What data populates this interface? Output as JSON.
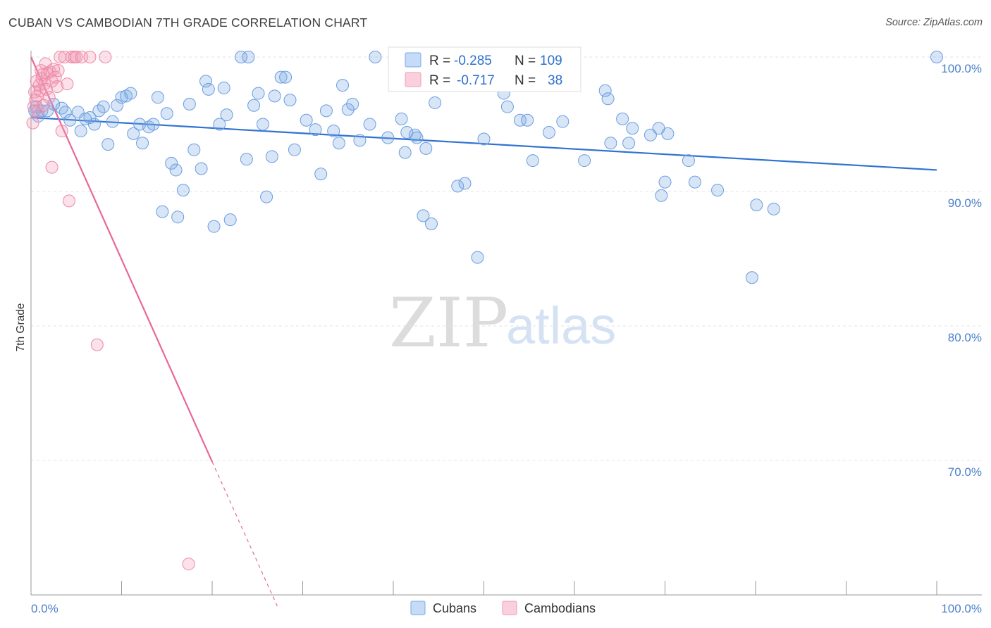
{
  "title": "CUBAN VS CAMBODIAN 7TH GRADE CORRELATION CHART",
  "source": "Source: ZipAtlas.com",
  "watermark": {
    "zip": "ZIP",
    "atlas": "atlas"
  },
  "chart_data": {
    "type": "scatter",
    "title": "CUBAN VS CAMBODIAN 7TH GRADE CORRELATION CHART",
    "xlabel": "",
    "ylabel": "7th Grade",
    "xlim": [
      0,
      105
    ],
    "ylim": [
      60.5,
      101.5
    ],
    "x_tick_labels": [
      {
        "value": 0,
        "label": "0.0%"
      },
      {
        "value": 100,
        "label": "100.0%"
      }
    ],
    "y_tick_labels": [
      {
        "value": 100,
        "label": "100.0%"
      },
      {
        "value": 90,
        "label": "90.0%"
      },
      {
        "value": 80,
        "label": "80.0%"
      },
      {
        "value": 70,
        "label": "70.0%"
      }
    ],
    "x_minor_ticks": [
      0,
      10,
      20,
      30,
      40,
      50,
      60,
      70,
      80,
      90,
      100
    ],
    "grid": true,
    "legend": [
      {
        "name": "Cubans",
        "color": "#7aaae6",
        "r_label": "R =",
        "r": "-0.285",
        "n_label": "N =",
        "n": "109"
      },
      {
        "name": "Cambodians",
        "color": "#f29ab6",
        "r_label": "R =",
        "r": "-0.717",
        "n_label": "N =",
        "n": "38"
      }
    ],
    "series": [
      {
        "name": "Cubans",
        "color": "#7aaae6",
        "stroke": "#6a9ee0",
        "trend": {
          "x0": 0,
          "y0": 95.5,
          "x1": 100,
          "y1": 91.6
        },
        "points": [
          [
            0.4,
            96.0
          ],
          [
            0.8,
            95.6
          ],
          [
            1.2,
            96.0
          ],
          [
            1.8,
            96.0
          ],
          [
            2.5,
            96.5
          ],
          [
            3.4,
            96.2
          ],
          [
            3.8,
            95.9
          ],
          [
            4.3,
            95.3
          ],
          [
            5.2,
            95.9
          ],
          [
            5.5,
            94.5
          ],
          [
            6.0,
            95.4
          ],
          [
            6.5,
            95.5
          ],
          [
            7.0,
            95.0
          ],
          [
            7.5,
            96.0
          ],
          [
            8.0,
            96.3
          ],
          [
            8.5,
            93.5
          ],
          [
            9.0,
            95.2
          ],
          [
            9.5,
            96.4
          ],
          [
            10.0,
            97.0
          ],
          [
            10.5,
            97.1
          ],
          [
            11.0,
            97.3
          ],
          [
            11.3,
            94.3
          ],
          [
            12.0,
            95.0
          ],
          [
            12.3,
            93.6
          ],
          [
            13.0,
            94.8
          ],
          [
            13.5,
            95.0
          ],
          [
            14.0,
            97.0
          ],
          [
            14.5,
            88.5
          ],
          [
            15.0,
            95.8
          ],
          [
            15.5,
            92.1
          ],
          [
            16.0,
            91.6
          ],
          [
            16.2,
            88.1
          ],
          [
            16.8,
            90.1
          ],
          [
            17.5,
            96.5
          ],
          [
            18.0,
            93.1
          ],
          [
            18.8,
            91.7
          ],
          [
            19.3,
            98.2
          ],
          [
            19.6,
            97.6
          ],
          [
            20.2,
            87.4
          ],
          [
            20.8,
            95.0
          ],
          [
            21.3,
            97.7
          ],
          [
            21.6,
            95.7
          ],
          [
            22.0,
            87.9
          ],
          [
            23.2,
            100.0
          ],
          [
            23.8,
            92.4
          ],
          [
            24.0,
            100.0
          ],
          [
            24.6,
            96.4
          ],
          [
            25.1,
            97.3
          ],
          [
            25.6,
            95.0
          ],
          [
            26.0,
            89.6
          ],
          [
            26.6,
            92.6
          ],
          [
            26.9,
            97.1
          ],
          [
            27.6,
            98.5
          ],
          [
            28.1,
            98.5
          ],
          [
            28.6,
            96.8
          ],
          [
            29.1,
            93.1
          ],
          [
            30.4,
            95.3
          ],
          [
            31.4,
            94.6
          ],
          [
            32.0,
            91.3
          ],
          [
            32.6,
            96.0
          ],
          [
            33.4,
            94.5
          ],
          [
            34.0,
            93.6
          ],
          [
            34.4,
            97.9
          ],
          [
            35.0,
            96.1
          ],
          [
            35.5,
            96.5
          ],
          [
            36.3,
            93.8
          ],
          [
            37.4,
            95.0
          ],
          [
            38.0,
            100.0
          ],
          [
            39.4,
            94.0
          ],
          [
            40.9,
            95.4
          ],
          [
            41.3,
            92.9
          ],
          [
            41.5,
            94.4
          ],
          [
            42.4,
            94.2
          ],
          [
            42.6,
            94.0
          ],
          [
            43.3,
            88.2
          ],
          [
            43.6,
            93.2
          ],
          [
            44.2,
            87.6
          ],
          [
            44.6,
            96.6
          ],
          [
            47.1,
            90.4
          ],
          [
            47.9,
            90.6
          ],
          [
            49.3,
            85.1
          ],
          [
            50.0,
            93.9
          ],
          [
            52.2,
            97.3
          ],
          [
            52.6,
            96.3
          ],
          [
            54.0,
            95.3
          ],
          [
            54.8,
            95.3
          ],
          [
            55.4,
            92.3
          ],
          [
            57.2,
            94.4
          ],
          [
            58.7,
            95.2
          ],
          [
            61.1,
            92.3
          ],
          [
            63.4,
            97.5
          ],
          [
            63.7,
            96.9
          ],
          [
            64.0,
            93.6
          ],
          [
            65.3,
            95.4
          ],
          [
            66.0,
            93.6
          ],
          [
            66.4,
            94.7
          ],
          [
            68.4,
            94.2
          ],
          [
            69.3,
            94.7
          ],
          [
            69.6,
            89.7
          ],
          [
            70.0,
            90.7
          ],
          [
            70.3,
            94.3
          ],
          [
            72.6,
            92.3
          ],
          [
            73.3,
            90.7
          ],
          [
            75.8,
            90.1
          ],
          [
            79.6,
            83.6
          ],
          [
            80.1,
            89.0
          ],
          [
            82.0,
            88.7
          ],
          [
            100.0,
            100.0
          ],
          [
            0.6,
            96.3
          ]
        ]
      },
      {
        "name": "Cambodians",
        "color": "#f29ab6",
        "stroke": "#ee88a8",
        "trend": {
          "x0": 0,
          "y0": 100.0,
          "x1": 20,
          "y1": 69.9
        },
        "trend_dashed": {
          "x0": 20,
          "y0": 69.9,
          "x1": 27.3,
          "y1": 59.0
        },
        "points": [
          [
            0.2,
            95.1
          ],
          [
            0.3,
            96.3
          ],
          [
            0.4,
            97.4
          ],
          [
            0.5,
            96.8
          ],
          [
            0.6,
            98.2
          ],
          [
            0.7,
            97.1
          ],
          [
            0.8,
            96.0
          ],
          [
            0.9,
            97.9
          ],
          [
            1.0,
            97.5
          ],
          [
            1.1,
            99.0
          ],
          [
            1.2,
            98.4
          ],
          [
            1.3,
            98.7
          ],
          [
            1.5,
            98.0
          ],
          [
            1.6,
            99.5
          ],
          [
            1.7,
            97.6
          ],
          [
            1.8,
            98.8
          ],
          [
            2.0,
            97.0
          ],
          [
            2.1,
            98.9
          ],
          [
            2.3,
            98.2
          ],
          [
            2.5,
            99.1
          ],
          [
            2.7,
            98.5
          ],
          [
            2.9,
            97.8
          ],
          [
            3.0,
            99.0
          ],
          [
            3.2,
            100.0
          ],
          [
            3.4,
            94.5
          ],
          [
            3.7,
            100.0
          ],
          [
            4.0,
            98.0
          ],
          [
            4.2,
            89.3
          ],
          [
            4.5,
            100.0
          ],
          [
            4.8,
            100.0
          ],
          [
            5.0,
            100.0
          ],
          [
            5.6,
            100.0
          ],
          [
            6.5,
            100.0
          ],
          [
            8.2,
            100.0
          ],
          [
            7.3,
            78.6
          ],
          [
            2.3,
            91.8
          ],
          [
            17.4,
            62.3
          ],
          [
            1.4,
            96.4
          ]
        ]
      }
    ]
  }
}
